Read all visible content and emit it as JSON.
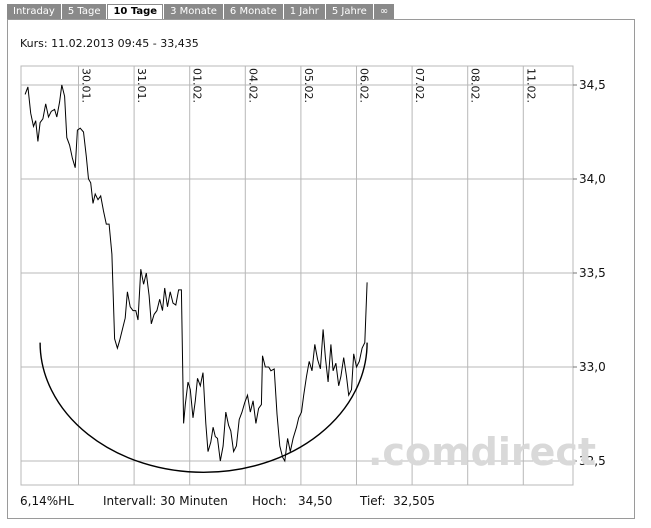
{
  "tabs": [
    {
      "label": "Intraday",
      "active": false
    },
    {
      "label": "5 Tage",
      "active": false
    },
    {
      "label": "10 Tage",
      "active": true
    },
    {
      "label": "3 Monate",
      "active": false
    },
    {
      "label": "6 Monate",
      "active": false
    },
    {
      "label": "1 Jahr",
      "active": false
    },
    {
      "label": "5 Jahre",
      "active": false
    },
    {
      "label": "∞",
      "active": false
    }
  ],
  "kurs_text": "Kurs: 11.02.2013 09:45 - 33,435",
  "footer": {
    "range": "6,14%HL",
    "interval": "Intervall: 30 Minuten",
    "hoch_label": "Hoch:",
    "hoch_value": "34,50",
    "tief_label": "Tief:",
    "tief_value": "32,505"
  },
  "watermark": ".comdirect",
  "colors": {
    "line": "#000000",
    "grid": "#b8b8b8",
    "tab_inactive": "#8a8a8a",
    "watermark": "#d9d9d9"
  },
  "chart_data": {
    "type": "line",
    "ylim": [
      32.45,
      34.65
    ],
    "y_ticks": [
      "34,5",
      "34,0",
      "33,5",
      "33,0",
      "32,5"
    ],
    "y_tick_values": [
      34.5,
      34.0,
      33.5,
      33.0,
      32.5
    ],
    "x_ticks": [
      "30.01.",
      "31.01.",
      "01.02.",
      "04.02.",
      "05.02.",
      "06.02.",
      "07.02.",
      "08.02.",
      "11.02."
    ],
    "x_tick_index": [
      0,
      1,
      2,
      3,
      4,
      5,
      6,
      7,
      8
    ],
    "x_start": -0.96,
    "x_end": 8.0,
    "series": [
      {
        "values": [
          [
            -0.96,
            34.45
          ],
          [
            -0.91,
            34.49
          ],
          [
            -0.86,
            34.35
          ],
          [
            -0.81,
            34.28
          ],
          [
            -0.77,
            34.31
          ],
          [
            -0.73,
            34.2
          ],
          [
            -0.69,
            34.3
          ],
          [
            -0.64,
            34.32
          ],
          [
            -0.59,
            34.4
          ],
          [
            -0.54,
            34.33
          ],
          [
            -0.49,
            34.36
          ],
          [
            -0.43,
            34.37
          ],
          [
            -0.39,
            34.33
          ],
          [
            -0.34,
            34.41
          ],
          [
            -0.3,
            34.5
          ],
          [
            -0.25,
            34.44
          ],
          [
            -0.21,
            34.22
          ],
          [
            -0.16,
            34.18
          ],
          [
            -0.11,
            34.11
          ],
          [
            -0.06,
            34.06
          ],
          [
            -0.02,
            34.26
          ],
          [
            0.03,
            34.27
          ],
          [
            0.09,
            34.25
          ],
          [
            0.14,
            34.12
          ],
          [
            0.18,
            34.0
          ],
          [
            0.22,
            33.98
          ],
          [
            0.26,
            33.87
          ],
          [
            0.3,
            33.92
          ],
          [
            0.35,
            33.89
          ],
          [
            0.4,
            33.91
          ],
          [
            0.45,
            33.83
          ],
          [
            0.5,
            33.76
          ],
          [
            0.55,
            33.76
          ],
          [
            0.6,
            33.6
          ],
          [
            0.65,
            33.15
          ],
          [
            0.7,
            33.1
          ],
          [
            0.74,
            33.14
          ],
          [
            0.79,
            33.2
          ],
          [
            0.84,
            33.26
          ],
          [
            0.88,
            33.4
          ],
          [
            0.93,
            33.32
          ],
          [
            0.98,
            33.3
          ],
          [
            1.03,
            33.3
          ],
          [
            1.07,
            33.25
          ],
          [
            1.12,
            33.52
          ],
          [
            1.17,
            33.44
          ],
          [
            1.22,
            33.5
          ],
          [
            1.27,
            33.38
          ],
          [
            1.31,
            33.23
          ],
          [
            1.36,
            33.28
          ],
          [
            1.41,
            33.3
          ],
          [
            1.46,
            33.36
          ],
          [
            1.51,
            33.3
          ],
          [
            1.55,
            33.42
          ],
          [
            1.6,
            33.32
          ],
          [
            1.65,
            33.4
          ],
          [
            1.7,
            33.34
          ],
          [
            1.75,
            33.33
          ],
          [
            1.8,
            33.41
          ],
          [
            1.85,
            33.41
          ],
          [
            1.89,
            32.7
          ],
          [
            1.92,
            32.8
          ],
          [
            1.97,
            32.92
          ],
          [
            2.01,
            32.88
          ],
          [
            2.06,
            32.73
          ],
          [
            2.1,
            32.82
          ],
          [
            2.14,
            32.94
          ],
          [
            2.19,
            32.9
          ],
          [
            2.24,
            32.97
          ],
          [
            2.29,
            32.7
          ],
          [
            2.33,
            32.55
          ],
          [
            2.38,
            32.6
          ],
          [
            2.42,
            32.68
          ],
          [
            2.46,
            32.63
          ],
          [
            2.5,
            32.62
          ],
          [
            2.55,
            32.5
          ],
          [
            2.6,
            32.58
          ],
          [
            2.65,
            32.76
          ],
          [
            2.7,
            32.69
          ],
          [
            2.74,
            32.66
          ],
          [
            2.79,
            32.55
          ],
          [
            2.84,
            32.58
          ],
          [
            2.89,
            32.72
          ],
          [
            2.94,
            32.76
          ],
          [
            2.99,
            32.81
          ],
          [
            3.04,
            32.85
          ],
          [
            3.09,
            32.76
          ],
          [
            3.14,
            32.82
          ],
          [
            3.19,
            32.7
          ],
          [
            3.24,
            32.78
          ],
          [
            3.29,
            32.8
          ],
          [
            3.31,
            33.06
          ],
          [
            3.36,
            33.0
          ],
          [
            3.42,
            33.0
          ],
          [
            3.46,
            32.98
          ],
          [
            3.52,
            32.99
          ],
          [
            3.57,
            32.75
          ],
          [
            3.62,
            32.58
          ],
          [
            3.67,
            32.52
          ],
          [
            3.71,
            32.5
          ],
          [
            3.76,
            32.62
          ],
          [
            3.81,
            32.55
          ],
          [
            3.86,
            32.62
          ],
          [
            3.92,
            32.68
          ],
          [
            3.96,
            32.73
          ],
          [
            4.01,
            32.76
          ],
          [
            4.05,
            32.85
          ],
          [
            4.1,
            32.95
          ],
          [
            4.15,
            33.03
          ],
          [
            4.2,
            32.98
          ],
          [
            4.25,
            33.12
          ],
          [
            4.3,
            33.04
          ],
          [
            4.35,
            32.99
          ],
          [
            4.4,
            33.2
          ],
          [
            4.44,
            33.05
          ],
          [
            4.49,
            32.92
          ],
          [
            4.54,
            33.12
          ],
          [
            4.58,
            32.98
          ],
          [
            4.63,
            33.02
          ],
          [
            4.68,
            32.9
          ],
          [
            4.72,
            32.95
          ],
          [
            4.77,
            33.05
          ],
          [
            4.82,
            32.95
          ],
          [
            4.86,
            32.85
          ],
          [
            4.91,
            32.88
          ],
          [
            4.95,
            33.07
          ],
          [
            5.0,
            33.0
          ],
          [
            5.05,
            33.03
          ],
          [
            5.1,
            33.1
          ],
          [
            5.15,
            33.13
          ],
          [
            5.19,
            33.45
          ]
        ]
      }
    ],
    "arc": {
      "center": [
        2.25,
        33.13
      ],
      "radius_x": 2.94,
      "radius_y": 0.69
    }
  }
}
